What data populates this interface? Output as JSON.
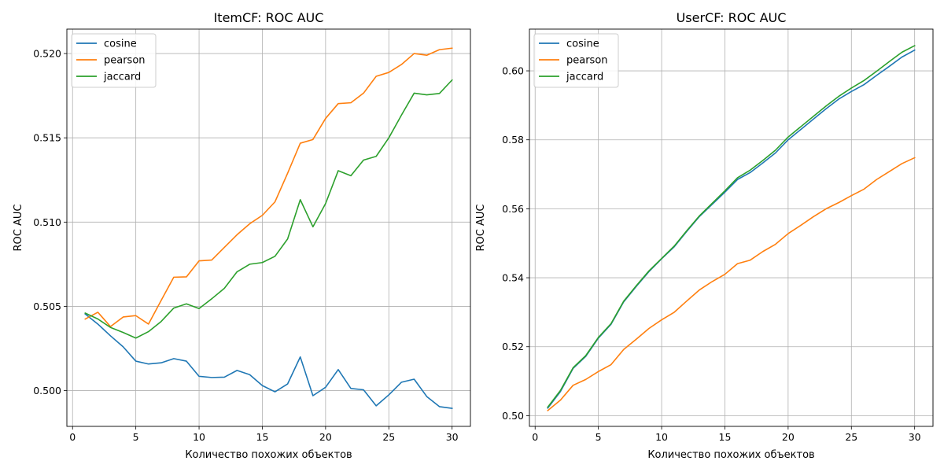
{
  "chart_data": [
    {
      "type": "line",
      "title": "ItemCF: ROC AUC",
      "xlabel": "Количество похожих объектов",
      "ylabel": "ROC AUC",
      "xlim": [
        -0.45,
        31.45
      ],
      "ylim": [
        0.49788,
        0.52145
      ],
      "xticks": [
        0,
        5,
        10,
        15,
        20,
        25,
        30
      ],
      "yticks": [
        0.5,
        0.505,
        0.51,
        0.515,
        0.52
      ],
      "ytick_labels": [
        "0.500",
        "0.505",
        "0.510",
        "0.515",
        "0.520"
      ],
      "grid": true,
      "legend_position": "top-left",
      "x": [
        1,
        2,
        3,
        4,
        5,
        6,
        7,
        8,
        9,
        10,
        11,
        12,
        13,
        14,
        15,
        16,
        17,
        18,
        19,
        20,
        21,
        22,
        23,
        24,
        25,
        26,
        27,
        28,
        29,
        30
      ],
      "series": [
        {
          "name": "cosine",
          "color": "#1f77b4",
          "values": [
            0.50455,
            0.50395,
            0.50325,
            0.5026,
            0.50175,
            0.50158,
            0.50165,
            0.5019,
            0.50175,
            0.50085,
            0.50078,
            0.5008,
            0.5012,
            0.50095,
            0.5003,
            0.49993,
            0.5004,
            0.502,
            0.4997,
            0.5002,
            0.50125,
            0.50013,
            0.50005,
            0.4991,
            0.49975,
            0.5005,
            0.50068,
            0.49965,
            0.49905,
            0.49895
          ]
        },
        {
          "name": "pearson",
          "color": "#ff7f0e",
          "values": [
            0.50425,
            0.50465,
            0.5038,
            0.50437,
            0.50445,
            0.50395,
            0.50535,
            0.50673,
            0.50675,
            0.5077,
            0.50775,
            0.5085,
            0.50925,
            0.5099,
            0.5104,
            0.5112,
            0.5129,
            0.51468,
            0.5149,
            0.51615,
            0.51703,
            0.51708,
            0.51765,
            0.51865,
            0.51888,
            0.51935,
            0.52,
            0.5199,
            0.52023,
            0.52032
          ]
        },
        {
          "name": "jaccard",
          "color": "#2ca02c",
          "values": [
            0.5046,
            0.50425,
            0.50375,
            0.50345,
            0.50312,
            0.5035,
            0.5041,
            0.5049,
            0.50515,
            0.50487,
            0.50545,
            0.50607,
            0.50705,
            0.5075,
            0.5076,
            0.50797,
            0.509,
            0.51133,
            0.50972,
            0.5111,
            0.51305,
            0.51275,
            0.51368,
            0.5139,
            0.515,
            0.51635,
            0.51765,
            0.51755,
            0.51763,
            0.51843
          ]
        }
      ]
    },
    {
      "type": "line",
      "title": "UserCF: ROC AUC",
      "xlabel": "Количество похожих объектов",
      "ylabel": "ROC AUC",
      "xlim": [
        -0.45,
        31.45
      ],
      "ylim": [
        0.4969,
        0.6121
      ],
      "xticks": [
        0,
        5,
        10,
        15,
        20,
        25,
        30
      ],
      "yticks": [
        0.5,
        0.52,
        0.54,
        0.56,
        0.58,
        0.6
      ],
      "ytick_labels": [
        "0.50",
        "0.52",
        "0.54",
        "0.56",
        "0.58",
        "0.60"
      ],
      "grid": true,
      "legend_position": "top-left",
      "x": [
        1,
        2,
        3,
        4,
        5,
        6,
        7,
        8,
        9,
        10,
        11,
        12,
        13,
        14,
        15,
        16,
        17,
        18,
        19,
        20,
        21,
        22,
        23,
        24,
        25,
        26,
        27,
        28,
        29,
        30
      ],
      "series": [
        {
          "name": "cosine",
          "color": "#1f77b4",
          "values": [
            0.5022,
            0.507,
            0.5137,
            0.5172,
            0.5225,
            0.5265,
            0.533,
            0.5375,
            0.5418,
            0.5455,
            0.549,
            0.5535,
            0.5578,
            0.5613,
            0.5648,
            0.5685,
            0.5705,
            0.5733,
            0.5762,
            0.58,
            0.583,
            0.586,
            0.589,
            0.5918,
            0.594,
            0.596,
            0.5987,
            0.6013,
            0.604,
            0.606
          ]
        },
        {
          "name": "pearson",
          "color": "#ff7f0e",
          "values": [
            0.5015,
            0.5045,
            0.5088,
            0.5105,
            0.5128,
            0.5148,
            0.5192,
            0.5222,
            0.5253,
            0.5278,
            0.53,
            0.5333,
            0.5365,
            0.5389,
            0.541,
            0.5441,
            0.5451,
            0.5476,
            0.5497,
            0.5528,
            0.5552,
            0.5577,
            0.56,
            0.5618,
            0.5638,
            0.5657,
            0.5685,
            0.5708,
            0.5731,
            0.5748
          ]
        },
        {
          "name": "jaccard",
          "color": "#2ca02c",
          "values": [
            0.5025,
            0.5073,
            0.5139,
            0.5174,
            0.5227,
            0.5267,
            0.5332,
            0.5377,
            0.542,
            0.5456,
            0.5492,
            0.5537,
            0.558,
            0.5616,
            0.5652,
            0.569,
            0.5712,
            0.574,
            0.577,
            0.5808,
            0.5838,
            0.5868,
            0.5898,
            0.5926,
            0.595,
            0.5972,
            0.5999,
            0.6027,
            0.6054,
            0.6073
          ]
        }
      ]
    }
  ]
}
